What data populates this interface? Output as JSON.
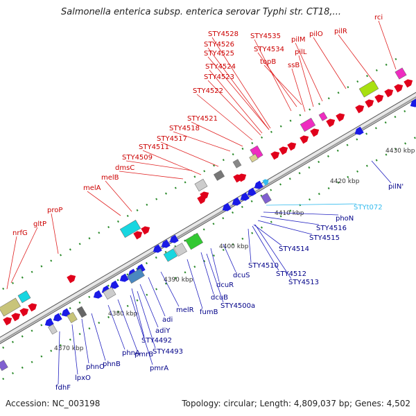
{
  "title": "Salmonella enterica subsp. enterica serovar Typhi str. CT18,...",
  "footer": {
    "accession": "Accession: NC_003198",
    "summary": "Topology: circular; Length: 4,809,037 bp; Genes: 4,502"
  },
  "colors": {
    "forward": "#e0001b",
    "reverse": "#1a1ae6",
    "rna": "#33bbee",
    "backbone": "#9a9a9a",
    "tick": "#2a8a2a"
  },
  "ticks": [
    "4370 kbp",
    "4380 kbp",
    "4390 kbp",
    "4400 kbp",
    "4410 kbp",
    "4420 kbp",
    "4430 kbp"
  ],
  "upper_labels": [
    "rci",
    "pilR",
    "pilO",
    "pilM",
    "pilL",
    "ssB",
    "STY4535",
    "STY4534",
    "topB",
    "STY4528",
    "STY4526",
    "STY4525",
    "STY4524",
    "STY4523",
    "STY4522",
    "STY4521",
    "STY4518",
    "STY4517",
    "STY4511",
    "STY4509",
    "dmsC",
    "melB",
    "melA",
    "proP",
    "gltP",
    "nrfG"
  ],
  "lower_labels": [
    "pilN'",
    "STYt072",
    "phoN",
    "STY4516",
    "STY4515",
    "STY4514",
    "STY4510",
    "STY4512",
    "STY4513",
    "dcuS",
    "dcuR",
    "dcuB",
    "STY4500a",
    "fumB",
    "melR",
    "adi",
    "adiY",
    "STY4492",
    "STY4493",
    "pmrA",
    "pmrB",
    "phnA",
    "phnB",
    "phnO",
    "lpxO",
    "fdhF"
  ]
}
